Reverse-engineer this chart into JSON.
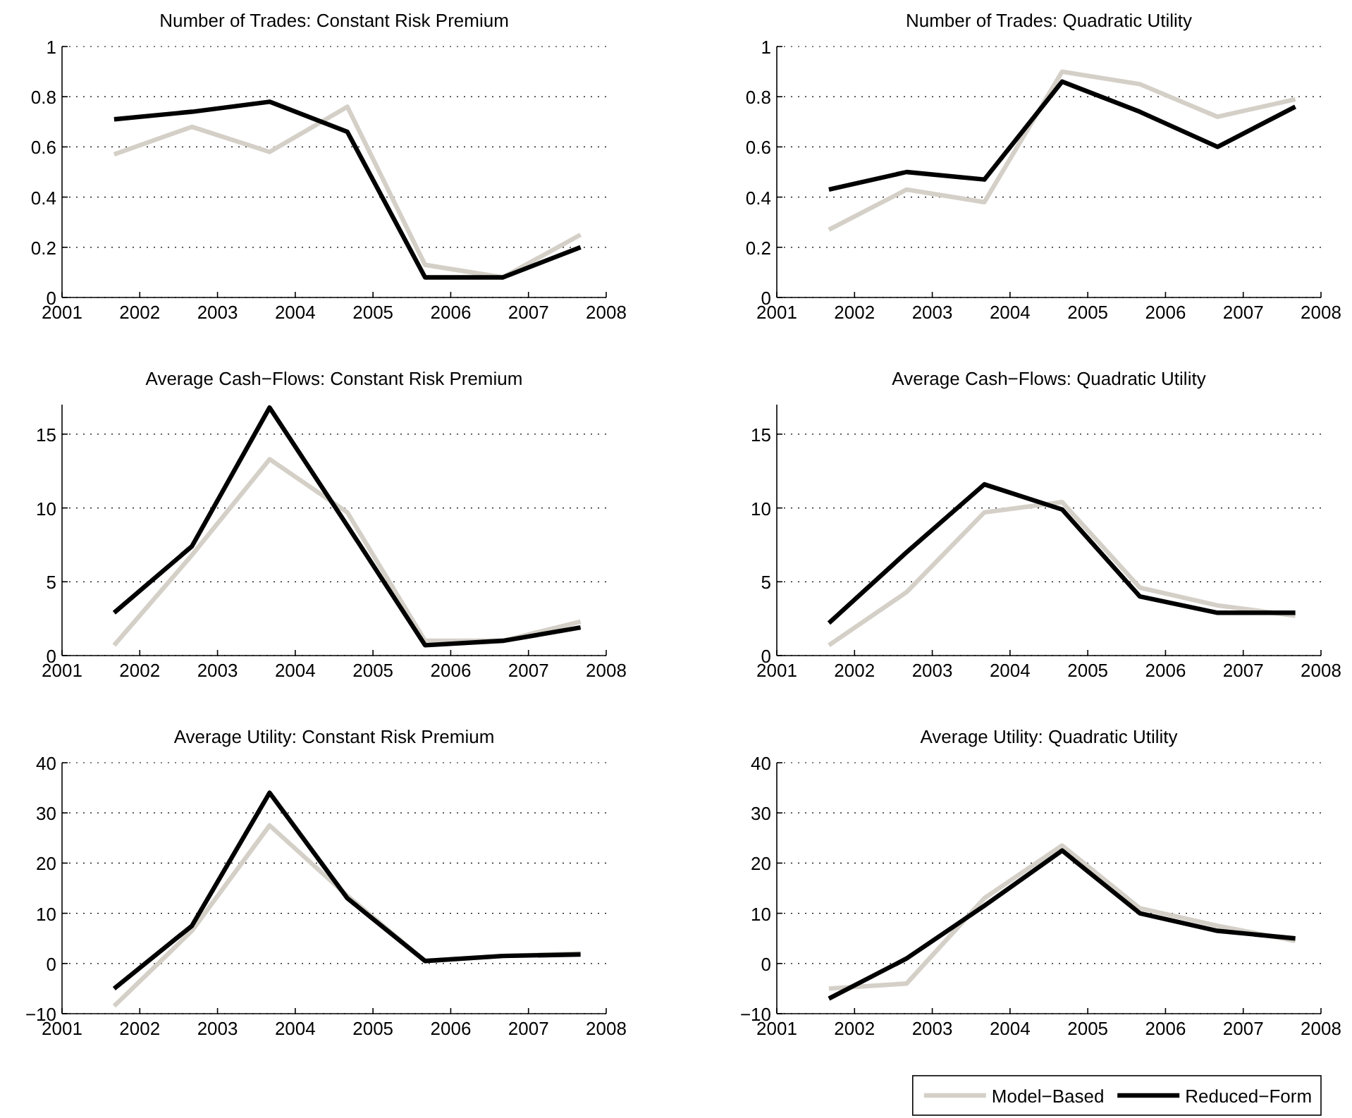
{
  "chart_data": [
    {
      "type": "line",
      "title": "Number of Trades: Constant Risk Premium",
      "x": [
        2001.67,
        2002.67,
        2003.67,
        2004.67,
        2005.67,
        2006.67,
        2007.67
      ],
      "xlim": [
        2001,
        2008
      ],
      "xticks": [
        2001,
        2002,
        2003,
        2004,
        2005,
        2006,
        2007,
        2008
      ],
      "ylim": [
        0,
        1
      ],
      "yticks": [
        0,
        0.2,
        0.4,
        0.6,
        0.8,
        1
      ],
      "grid": "y",
      "legend": false,
      "series": [
        {
          "color": "#d4d0c8",
          "values": [
            0.57,
            0.68,
            0.58,
            0.76,
            0.13,
            0.08,
            0.25
          ]
        },
        {
          "color": "#000000",
          "values": [
            0.71,
            0.74,
            0.78,
            0.66,
            0.08,
            0.08,
            0.2
          ]
        }
      ]
    },
    {
      "type": "line",
      "title": "Number of Trades: Quadratic Utility",
      "x": [
        2001.67,
        2002.67,
        2003.67,
        2004.67,
        2005.67,
        2006.67,
        2007.67
      ],
      "xlim": [
        2001,
        2008
      ],
      "xticks": [
        2001,
        2002,
        2003,
        2004,
        2005,
        2006,
        2007,
        2008
      ],
      "ylim": [
        0,
        1
      ],
      "yticks": [
        0,
        0.2,
        0.4,
        0.6,
        0.8,
        1
      ],
      "grid": "y",
      "legend": false,
      "series": [
        {
          "color": "#d4d0c8",
          "values": [
            0.27,
            0.43,
            0.38,
            0.9,
            0.85,
            0.72,
            0.79
          ]
        },
        {
          "color": "#000000",
          "values": [
            0.43,
            0.5,
            0.47,
            0.86,
            0.74,
            0.6,
            0.76
          ]
        }
      ]
    },
    {
      "type": "line",
      "title": "Average Cash−Flows: Constant Risk Premium",
      "x": [
        2001.67,
        2002.67,
        2003.67,
        2004.67,
        2005.67,
        2006.67,
        2007.67
      ],
      "xlim": [
        2001,
        2008
      ],
      "xticks": [
        2001,
        2002,
        2003,
        2004,
        2005,
        2006,
        2007,
        2008
      ],
      "ylim": [
        0,
        17
      ],
      "yticks": [
        0,
        5,
        10,
        15
      ],
      "grid": "y",
      "legend": false,
      "series": [
        {
          "color": "#d4d0c8",
          "values": [
            0.7,
            6.8,
            13.3,
            9.7,
            1.0,
            1.0,
            2.3
          ]
        },
        {
          "color": "#000000",
          "values": [
            2.9,
            7.4,
            16.8,
            8.8,
            0.7,
            1.0,
            1.9
          ]
        }
      ]
    },
    {
      "type": "line",
      "title": "Average Cash−Flows: Quadratic Utility",
      "x": [
        2001.67,
        2002.67,
        2003.67,
        2004.67,
        2005.67,
        2006.67,
        2007.67
      ],
      "xlim": [
        2001,
        2008
      ],
      "xticks": [
        2001,
        2002,
        2003,
        2004,
        2005,
        2006,
        2007,
        2008
      ],
      "ylim": [
        0,
        17
      ],
      "yticks": [
        0,
        5,
        10,
        15
      ],
      "grid": "y",
      "legend": false,
      "series": [
        {
          "color": "#d4d0c8",
          "values": [
            0.7,
            4.3,
            9.7,
            10.4,
            4.6,
            3.4,
            2.7
          ]
        },
        {
          "color": "#000000",
          "values": [
            2.2,
            7.0,
            11.6,
            9.9,
            4.0,
            2.9,
            2.9
          ]
        }
      ]
    },
    {
      "type": "line",
      "title": "Average Utility: Constant Risk Premium",
      "x": [
        2001.67,
        2002.67,
        2003.67,
        2004.67,
        2005.67,
        2006.67,
        2007.67
      ],
      "xlim": [
        2001,
        2008
      ],
      "xticks": [
        2001,
        2002,
        2003,
        2004,
        2005,
        2006,
        2007,
        2008
      ],
      "ylim": [
        -10,
        40
      ],
      "yticks": [
        {
          "value": -10,
          "label": "−10"
        },
        0,
        10,
        20,
        30,
        40
      ],
      "grid": "y",
      "legend": false,
      "series": [
        {
          "color": "#d4d0c8",
          "values": [
            -8.5,
            6.5,
            27.5,
            13.5,
            0.5,
            1.5,
            2.0
          ]
        },
        {
          "color": "#000000",
          "values": [
            -5,
            7.5,
            34,
            13,
            0.5,
            1.5,
            1.8
          ]
        }
      ]
    },
    {
      "type": "line",
      "title": "Average Utility: Quadratic Utility",
      "x": [
        2001.67,
        2002.67,
        2003.67,
        2004.67,
        2005.67,
        2006.67,
        2007.67
      ],
      "xlim": [
        2001,
        2008
      ],
      "xticks": [
        2001,
        2002,
        2003,
        2004,
        2005,
        2006,
        2007,
        2008
      ],
      "ylim": [
        -10,
        40
      ],
      "yticks": [
        {
          "value": -10,
          "label": "−10"
        },
        0,
        10,
        20,
        30,
        40
      ],
      "grid": "y",
      "legend": "bottom right",
      "series": [
        {
          "name": "Model−Based",
          "color": "#d4d0c8",
          "values": [
            -5,
            -4,
            13,
            23.5,
            11,
            7.5,
            4.5
          ]
        },
        {
          "name": "Reduced−Form",
          "color": "#000000",
          "values": [
            -7,
            1,
            11.5,
            22.5,
            10,
            6.5,
            5
          ]
        }
      ]
    }
  ]
}
